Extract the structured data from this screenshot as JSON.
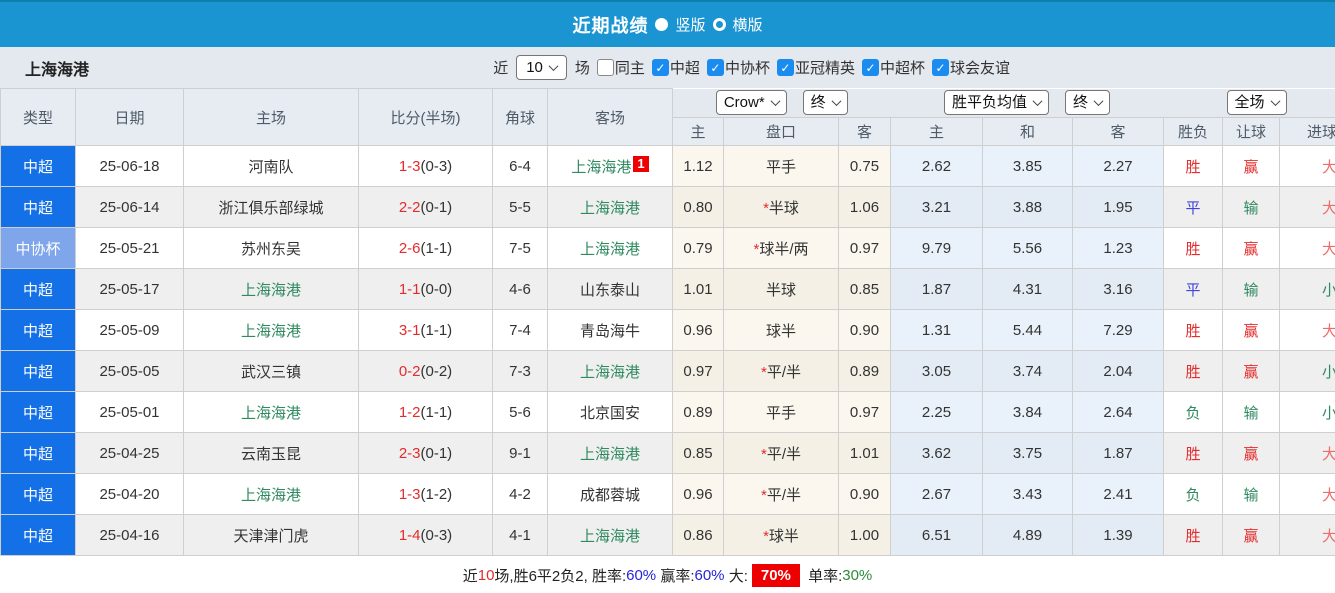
{
  "title_bar": {
    "title": "近期战绩",
    "radio_vertical_label": "竖版",
    "radio_horizontal_label": "横版"
  },
  "filter_bar": {
    "team_name": "上海海港",
    "recent_label": "近",
    "recent_value": "10",
    "matches_label": "场",
    "checkboxes": [
      {
        "label": "同主",
        "checked": false
      },
      {
        "label": "中超",
        "checked": true
      },
      {
        "label": "中协杯",
        "checked": true
      },
      {
        "label": "亚冠精英",
        "checked": true
      },
      {
        "label": "中超杯",
        "checked": true
      },
      {
        "label": "球会友谊",
        "checked": true
      }
    ]
  },
  "table": {
    "main_headers": [
      "类型",
      "日期",
      "主场",
      "比分(半场)",
      "角球",
      "客场"
    ],
    "dropdowns": {
      "asian_company": "Crow*",
      "asian_time": "终",
      "europe_company": "胜平负均值",
      "europe_time": "终",
      "scope": "全场"
    },
    "sub_headers": [
      "主",
      "盘口",
      "客",
      "主",
      "和",
      "客",
      "胜负",
      "让球",
      "进球数"
    ],
    "self_team": "上海海港",
    "rows": [
      {
        "type": "中超",
        "date": "25-06-18",
        "home": "河南队",
        "score": "1-3",
        "half": "(0-3)",
        "corner": "6-4",
        "away": "上海海港",
        "away_badge": "1",
        "ah": [
          "1.12",
          "平手",
          "0.75"
        ],
        "eu": [
          "2.62",
          "3.85",
          "2.27"
        ],
        "results": [
          "胜",
          "赢",
          "大"
        ]
      },
      {
        "type": "中超",
        "date": "25-06-14",
        "home": "浙江俱乐部绿城",
        "score": "2-2",
        "half": "(0-1)",
        "corner": "5-5",
        "away": "上海海港",
        "ah": [
          "0.80",
          "*半球",
          "1.06"
        ],
        "eu": [
          "3.21",
          "3.88",
          "1.95"
        ],
        "results": [
          "平",
          "输",
          "大"
        ]
      },
      {
        "type": "中协杯",
        "date": "25-05-21",
        "home": "苏州东吴",
        "score": "2-6",
        "half": "(1-1)",
        "corner": "7-5",
        "away": "上海海港",
        "ah": [
          "0.79",
          "*球半/两",
          "0.97"
        ],
        "eu": [
          "9.79",
          "5.56",
          "1.23"
        ],
        "results": [
          "胜",
          "赢",
          "大"
        ]
      },
      {
        "type": "中超",
        "date": "25-05-17",
        "home": "上海海港",
        "score": "1-1",
        "half": "(0-0)",
        "corner": "4-6",
        "away": "山东泰山",
        "ah": [
          "1.01",
          "半球",
          "0.85"
        ],
        "eu": [
          "1.87",
          "4.31",
          "3.16"
        ],
        "results": [
          "平",
          "输",
          "小"
        ]
      },
      {
        "type": "中超",
        "date": "25-05-09",
        "home": "上海海港",
        "score": "3-1",
        "half": "(1-1)",
        "corner": "7-4",
        "away": "青岛海牛",
        "ah": [
          "0.96",
          "球半",
          "0.90"
        ],
        "eu": [
          "1.31",
          "5.44",
          "7.29"
        ],
        "results": [
          "胜",
          "赢",
          "大"
        ]
      },
      {
        "type": "中超",
        "date": "25-05-05",
        "home": "武汉三镇",
        "score": "0-2",
        "half": "(0-2)",
        "corner": "7-3",
        "away": "上海海港",
        "ah": [
          "0.97",
          "*平/半",
          "0.89"
        ],
        "eu": [
          "3.05",
          "3.74",
          "2.04"
        ],
        "results": [
          "胜",
          "赢",
          "小"
        ]
      },
      {
        "type": "中超",
        "date": "25-05-01",
        "home": "上海海港",
        "score": "1-2",
        "half": "(1-1)",
        "corner": "5-6",
        "away": "北京国安",
        "ah": [
          "0.89",
          "平手",
          "0.97"
        ],
        "eu": [
          "2.25",
          "3.84",
          "2.64"
        ],
        "results": [
          "负",
          "输",
          "小"
        ]
      },
      {
        "type": "中超",
        "date": "25-04-25",
        "home": "云南玉昆",
        "score": "2-3",
        "half": "(0-1)",
        "corner": "9-1",
        "away": "上海海港",
        "ah": [
          "0.85",
          "*平/半",
          "1.01"
        ],
        "eu": [
          "3.62",
          "3.75",
          "1.87"
        ],
        "results": [
          "胜",
          "赢",
          "大"
        ]
      },
      {
        "type": "中超",
        "date": "25-04-20",
        "home": "上海海港",
        "score": "1-3",
        "half": "(1-2)",
        "corner": "4-2",
        "away": "成都蓉城",
        "ah": [
          "0.96",
          "*平/半",
          "0.90"
        ],
        "eu": [
          "2.67",
          "3.43",
          "2.41"
        ],
        "results": [
          "负",
          "输",
          "大"
        ]
      },
      {
        "type": "中超",
        "date": "25-04-16",
        "home": "天津津门虎",
        "score": "1-4",
        "half": "(0-3)",
        "corner": "4-1",
        "away": "上海海港",
        "ah": [
          "0.86",
          "*球半",
          "1.00"
        ],
        "eu": [
          "6.51",
          "4.89",
          "1.39"
        ],
        "results": [
          "胜",
          "赢",
          "大"
        ]
      }
    ]
  },
  "summary": {
    "segments": [
      {
        "text": "近"
      },
      {
        "text": "10",
        "color": "#e42c2c"
      },
      {
        "text": "场,胜6平2负2, 胜率:"
      },
      {
        "text": "60%",
        "color": "#2424d8"
      },
      {
        "text": " 赢率:"
      },
      {
        "text": "60%",
        "color": "#2424d8"
      },
      {
        "text": " 大:"
      },
      {
        "text": "70%",
        "color": "#ffffff",
        "bg": "#ee0000"
      },
      {
        "text": " 单率:"
      },
      {
        "text": "30%",
        "color": "#2e8b3a"
      }
    ]
  },
  "colors": {
    "accent_blue": "#1b95d2",
    "league_csl": "#1470e6",
    "league_cup": "#7fa6ea",
    "red": "#e42c2c",
    "big_red": "#f06a6a",
    "draw_blue": "#4343d9",
    "green": "#2f8a60",
    "badge_red": "#ee0000",
    "checkbox_blue": "#1a8cf0"
  }
}
